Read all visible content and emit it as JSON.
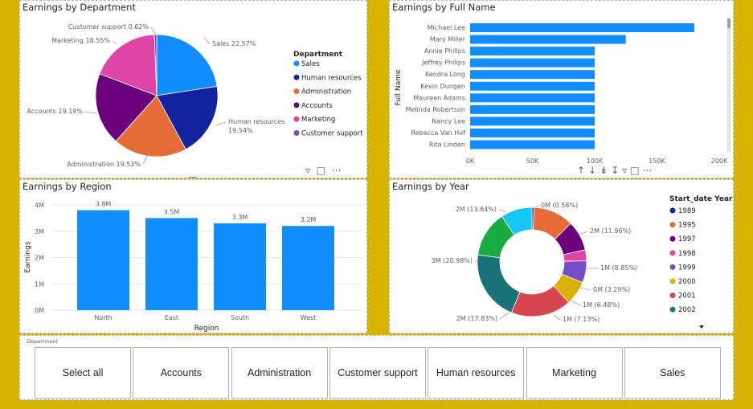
{
  "pie": {
    "title": "Earnings by Department",
    "legend_title": "Department",
    "legend": [
      "Sales",
      "Human resources",
      "Administration",
      "Accounts",
      "Marketing",
      "Customer support"
    ],
    "colors": {
      "Sales": "#118dff",
      "Human resources": "#12239e",
      "Administration": "#e66c37",
      "Accounts": "#6b007b",
      "Marketing": "#e044a7",
      "Customer support": "#744ec2"
    },
    "labels": [
      "Sales 22.57%",
      "Human resources",
      "19.54%",
      "Administration 19.53%",
      "Accounts 19.19%",
      "Marketing 18.55%",
      "Customer support 0.62%"
    ]
  },
  "bar_h": {
    "title": "Earnings by Full Name",
    "ylabel": "Full Name",
    "x_ticks": [
      "0K",
      "50K",
      "100K",
      "150K",
      "200K"
    ]
  },
  "bar_v": {
    "title": "Earnings by Region",
    "xlabel": "Region",
    "ylabel": "Earnings",
    "y_ticks": [
      "0M",
      "1M",
      "2M",
      "3M",
      "4M"
    ],
    "data_labels": [
      "3.8M",
      "3.5M",
      "3.3M",
      "3.2M"
    ]
  },
  "donut": {
    "title": "Earnings by Year",
    "legend_title": "Start_date Year",
    "legend": [
      "1989",
      "1995",
      "1997",
      "1998",
      "1999",
      "2000",
      "2001",
      "2002"
    ],
    "labels": [
      "0M (0.58%)",
      "2M (11.96%)",
      "1M (8.85%)",
      "0M (3.29%)",
      "1M (6.48%)",
      "1M (7.13%)",
      "2M (17.83%)",
      "3M (20.98%)",
      "2M (13.64%)"
    ]
  },
  "slicer": {
    "title": "Department",
    "options": [
      "Select all",
      "Accounts",
      "Administration",
      "Customer support",
      "Human resources",
      "Marketing",
      "Sales"
    ]
  },
  "chart_data": [
    {
      "type": "pie",
      "title": "Earnings by Department",
      "legend_title": "Department",
      "legend_position": "right",
      "categories": [
        "Sales",
        "Human resources",
        "Administration",
        "Accounts",
        "Marketing",
        "Customer support"
      ],
      "values": [
        22.57,
        19.54,
        19.53,
        19.19,
        18.55,
        0.62
      ],
      "unit": "%"
    },
    {
      "type": "bar",
      "orientation": "horizontal",
      "title": "Earnings by Full Name",
      "ylabel": "Full Name",
      "categories": [
        "Michael Lee",
        "Mary Miller",
        "Annie Philips",
        "Jeffrey Philips",
        "Kendra Long",
        "Kevin Dungen",
        "Maureen Adams",
        "Melinda Robertson",
        "Nancy Lee",
        "Rebecca Van Hof",
        "Rita Linden"
      ],
      "values": [
        180000,
        125000,
        100000,
        100000,
        100000,
        100000,
        100000,
        100000,
        100000,
        100000,
        100000
      ],
      "xlim": [
        0,
        200000
      ],
      "grid": false
    },
    {
      "type": "bar",
      "title": "Earnings by Region",
      "xlabel": "Region",
      "ylabel": "Earnings",
      "categories": [
        "North",
        "East",
        "South",
        "West"
      ],
      "values": [
        3.8,
        3.5,
        3.3,
        3.2
      ],
      "unit": "M",
      "ylim": [
        0,
        4
      ],
      "grid": true
    },
    {
      "type": "pie",
      "style": "donut",
      "title": "Earnings by Year",
      "legend_title": "Start_date Year",
      "legend_position": "right",
      "legend": [
        "1989",
        "1995",
        "1997",
        "1998",
        "1999",
        "2000",
        "2001",
        "2002"
      ],
      "values": [
        0.58,
        11.96,
        8.85,
        3.29,
        6.48,
        7.13,
        17.83,
        20.98,
        13.64
      ],
      "segment_colors": [
        "#12239e",
        "#e66c37",
        "#6b007b",
        "#e044a7",
        "#744ec2",
        "#d9b300",
        "#d64550",
        "#197278",
        "#1aab40",
        "#15c6f4"
      ],
      "unit": "%"
    }
  ]
}
